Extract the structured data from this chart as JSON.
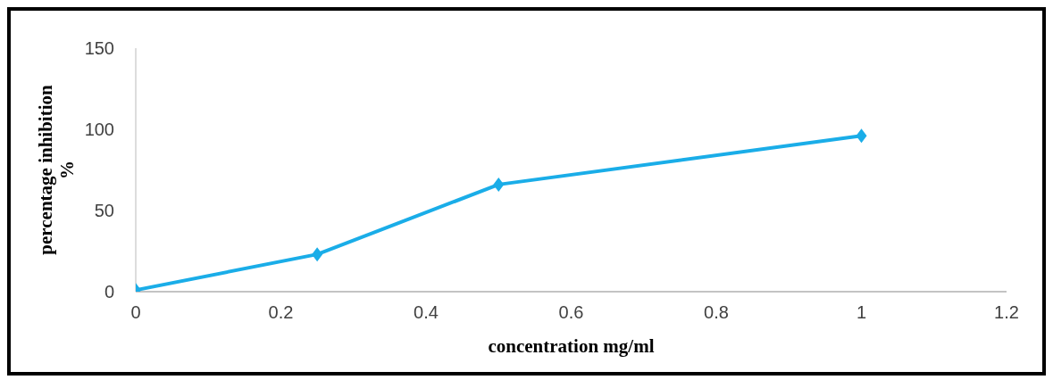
{
  "chart_data": {
    "type": "line",
    "xlabel": "concentration  mg/ml",
    "ylabel": "percentage inhibition %",
    "x": [
      0,
      0.25,
      0.5,
      1
    ],
    "series": [
      {
        "color": "#1aade8",
        "values": [
          1,
          23,
          66,
          96
        ]
      }
    ],
    "xlim": [
      0,
      1.2
    ],
    "xticks": [
      0,
      0.2,
      0.4,
      0.6,
      0.8,
      1,
      1.2
    ],
    "ylim": [
      0,
      150
    ],
    "yticks": [
      0,
      50,
      100,
      150
    ],
    "grid": false,
    "legend": false,
    "marker": "diamond",
    "line_style": "solid"
  }
}
